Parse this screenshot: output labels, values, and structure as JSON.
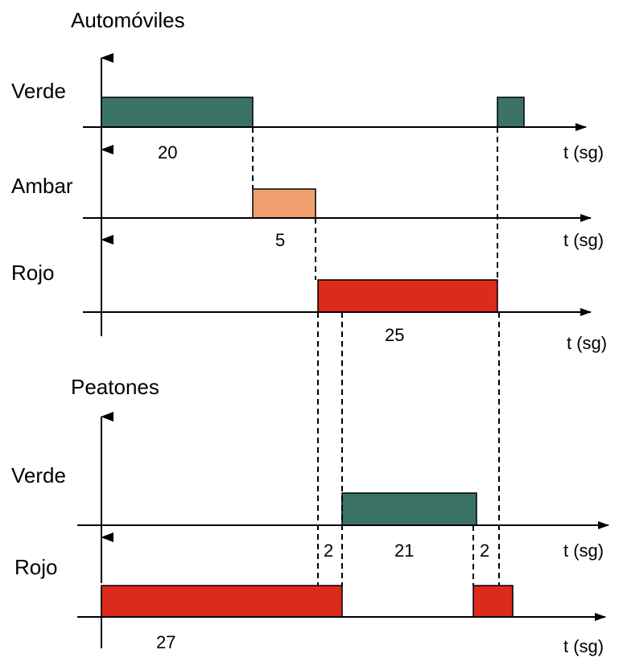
{
  "sections": {
    "automoviles": "Automóviles",
    "peatones": "Peatones"
  },
  "signals": {
    "car_green": "Verde",
    "car_amber": "Ambar",
    "car_red": "Rojo",
    "ped_green": "Verde",
    "ped_red": "Rojo"
  },
  "time_unit": "t (sg)",
  "durations": {
    "car_green": "20",
    "car_amber": "5",
    "car_red": "25",
    "ped_gap_1": "2",
    "ped_green": "21",
    "ped_gap_2": "2",
    "ped_red": "27"
  },
  "colors": {
    "green": "#3a7366",
    "amber": "#f0a06e",
    "red": "#dc2a1c"
  }
}
